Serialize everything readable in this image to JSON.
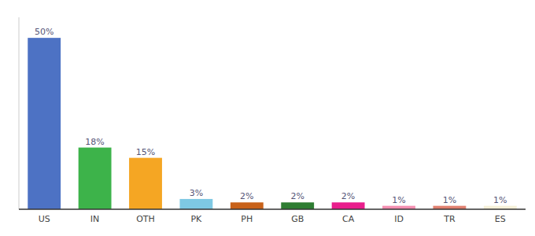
{
  "chart_data": {
    "type": "bar",
    "categories": [
      "US",
      "IN",
      "OTH",
      "PK",
      "PH",
      "GB",
      "CA",
      "ID",
      "TR",
      "ES"
    ],
    "values": [
      50,
      18,
      15,
      3,
      2,
      2,
      2,
      1,
      1,
      1
    ],
    "value_labels": [
      "50%",
      "18%",
      "15%",
      "3%",
      "2%",
      "2%",
      "2%",
      "1%",
      "1%",
      "1%"
    ],
    "colors": [
      "#4d72c4",
      "#3db34a",
      "#f5a623",
      "#7ec8e3",
      "#c8621a",
      "#2e7d32",
      "#e91e8c",
      "#f48fb1",
      "#e08070",
      "#f5f0d8"
    ],
    "ylim": [
      0,
      56
    ],
    "data_labels": true,
    "tick_labels": "x"
  }
}
